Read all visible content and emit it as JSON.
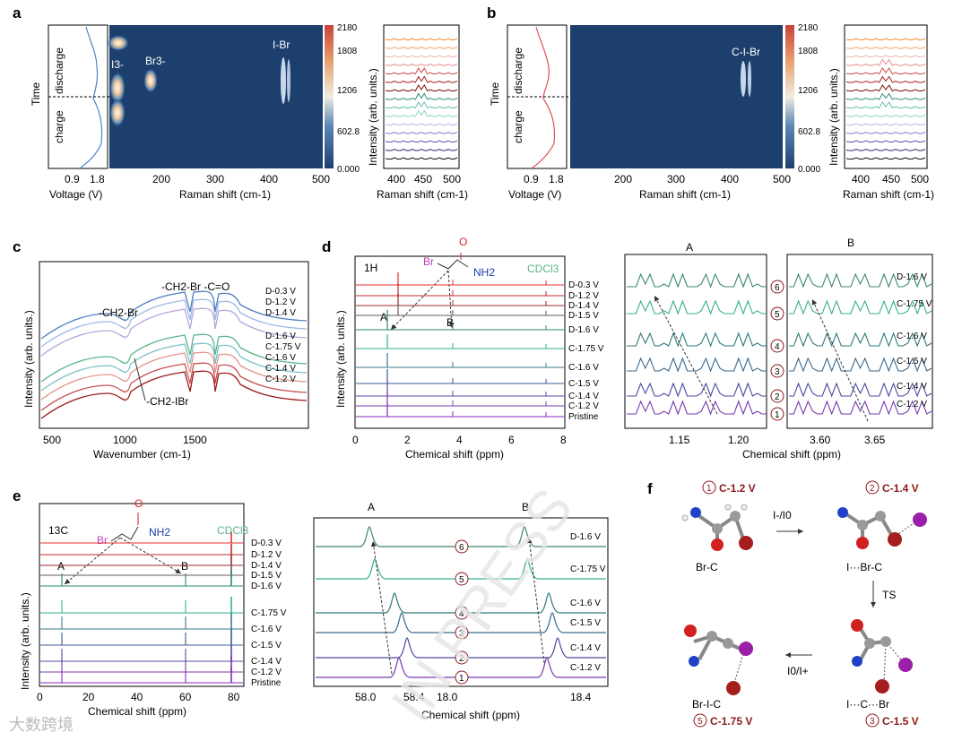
{
  "panels": [
    "a",
    "b",
    "c",
    "d",
    "e",
    "f"
  ],
  "panel_a": {
    "time_label": "Time",
    "discharge": "discharge",
    "charge": "charge",
    "voltage_ticks": [
      "0.9",
      "1.8"
    ],
    "voltage_label": "Voltage (V)",
    "map_peaks": [
      "I3-",
      "Br3-",
      "I-Br"
    ],
    "x_ticks": [
      "200",
      "300",
      "400",
      "500"
    ],
    "x_label": "Raman shift (cm-1)",
    "colorbar_ticks": [
      "2180",
      "1808",
      "1206",
      "602.8",
      "0.000"
    ],
    "side_ylabel": "Intensity (arb. units.)",
    "side_x_ticks": [
      "400",
      "450",
      "500"
    ],
    "side_x_label": "Raman shift (cm-1)"
  },
  "panel_b": {
    "time_label": "Time",
    "discharge": "discharge",
    "charge": "charge",
    "voltage_ticks": [
      "0.9",
      "1.8"
    ],
    "voltage_label": "Voltage (V)",
    "map_peak": "C-I-Br",
    "x_ticks": [
      "200",
      "300",
      "400",
      "500"
    ],
    "x_label": "Raman shift (cm-1)",
    "colorbar_ticks": [
      "2180",
      "1808",
      "1206",
      "602.8",
      "0.000"
    ],
    "side_ylabel": "Intensity (arb. units.)",
    "side_x_ticks": [
      "400",
      "450",
      "500"
    ],
    "side_x_label": "Raman shift (cm-1)"
  },
  "panel_c": {
    "ylabel": "Intensity (arb. units.)",
    "x_ticks": [
      "500",
      "1000",
      "1500"
    ],
    "x_label": "Wavenumber (cm-1)",
    "annotations": [
      "-CH2-Br -C=O",
      "-CH2-Br",
      "-CH2-IBr"
    ],
    "legend": [
      "D-0.3 V",
      "D-1.2 V",
      "D-1.4 V",
      "D-1.6 V",
      "C-1.75 V",
      "C-1.6 V",
      "C-1.4 V",
      "C-1.2 V"
    ]
  },
  "panel_d": {
    "nucleus": "1H",
    "solvent": "CDCl3",
    "mol_labels": [
      "Br",
      "O",
      "NH2"
    ],
    "peak_labels": [
      "A",
      "B"
    ],
    "traces": [
      "D-0.3 V",
      "D-1.2 V",
      "D-1.4 V",
      "D-1.5 V",
      "D-1.6 V",
      "C-1.75 V",
      "C-1.6 V",
      "C-1.5 V",
      "C-1.4 V",
      "C-1.2 V",
      "Pristine"
    ],
    "ylabel": "Intensity (arb. units.)",
    "x_ticks": [
      "0",
      "2",
      "4",
      "6",
      "8"
    ],
    "x_label": "Chemical shift (ppm)",
    "zoom_A_title": "A",
    "zoom_B_title": "B",
    "zoom_A_ticks": [
      "1.15",
      "1.20"
    ],
    "zoom_B_ticks": [
      "3.60",
      "3.65"
    ],
    "zoom_x_label": "Chemical shift (ppm)",
    "zoom_numbers": [
      "6",
      "5",
      "4",
      "3",
      "2",
      "1"
    ],
    "zoom_traces": [
      "D-1.6 V",
      "C-1.75 V",
      "C-1.6 V",
      "C-1.5 V",
      "C-1.4 V",
      "C-1.2 V"
    ]
  },
  "panel_e": {
    "nucleus": "13C",
    "solvent": "CDCl3",
    "mol_labels": [
      "Br",
      "O",
      "NH2"
    ],
    "peak_labels": [
      "A",
      "B"
    ],
    "traces": [
      "D-0.3 V",
      "D-1.2 V",
      "D-1.4 V",
      "D-1.5 V",
      "D-1.6 V",
      "C-1.75 V",
      "C-1.6 V",
      "C-1.5 V",
      "C-1.4 V",
      "C-1.2 V",
      "Pristine"
    ],
    "ylabel": "Intensity (arb. units.)",
    "x_ticks": [
      "0",
      "20",
      "40",
      "60",
      "80"
    ],
    "x_label": "Chemical shift (ppm)",
    "zoom_A_title": "A",
    "zoom_B_title": "B",
    "zoom_A_ticks": [
      "58.0",
      "58.4"
    ],
    "zoom_B_ticks": [
      "18.0",
      "18.4"
    ],
    "zoom_x_label": "Chemical shift (ppm)",
    "zoom_numbers": [
      "6",
      "5",
      "4",
      "3",
      "2",
      "1"
    ],
    "zoom_traces": [
      "D-1.6 V",
      "C-1.75 V",
      "C-1.6 V",
      "C-1.5 V",
      "C-1.4 V",
      "C-1.2 V"
    ]
  },
  "panel_f": {
    "states": [
      {
        "num": "1",
        "volt": "C-1.2 V",
        "name": "Br-C"
      },
      {
        "num": "2",
        "volt": "C-1.4 V",
        "name": "I···Br-C"
      },
      {
        "num": "3",
        "volt": "C-1.5 V",
        "name": "I···C···Br"
      },
      {
        "num": "5",
        "volt": "C-1.75 V",
        "name": "Br-I-C"
      }
    ],
    "arrow1": "I-/I0",
    "arrow2": "TS",
    "arrow3": "I0/I+"
  },
  "watermark": "IN PRESS",
  "corner_logo": "大数跨境",
  "colors": {
    "map_bg": "#1d3f6e",
    "peak_hot": "#f4d7a8",
    "voltage_a": "#4a88c8",
    "voltage_b": "#e0505a",
    "num_circle": "#8b1a1a",
    "state_label": "#8b1a1a"
  }
}
